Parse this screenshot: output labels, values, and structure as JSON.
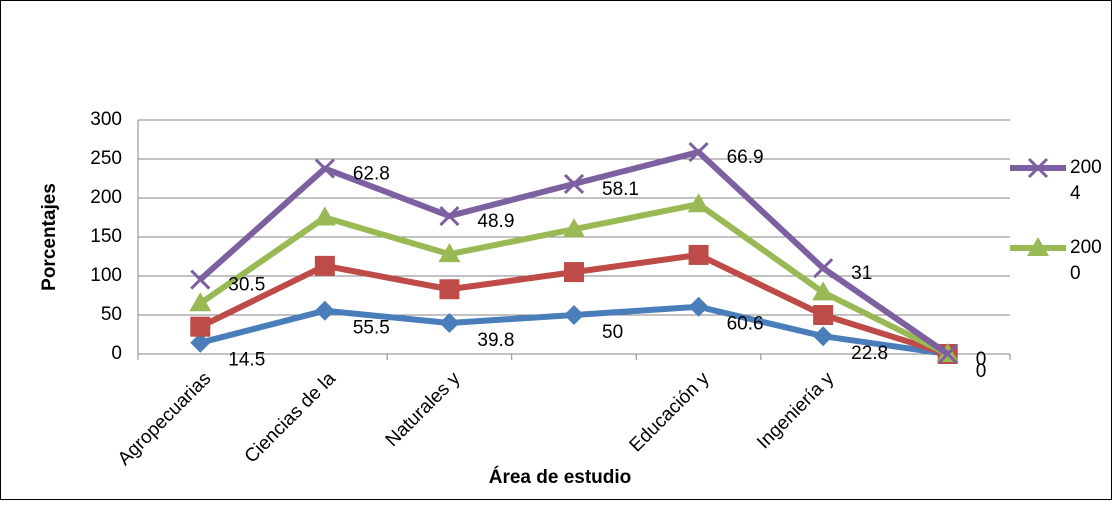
{
  "chart_data": {
    "type": "stacked-line",
    "x_label": "Área de estudio",
    "y_label": "Porcentajes",
    "categories": [
      "Agropecuarias",
      "Ciencias de la",
      "Naturales y",
      null,
      "Educación y",
      "Ingeniería y",
      null
    ],
    "series": [
      {
        "color": "#4a7ebb",
        "marker": "diamond",
        "values": [
          14.5,
          55.5,
          39.8,
          50,
          60.6,
          22.8,
          0
        ],
        "labeled": true
      },
      {
        "color": "#be4b48",
        "marker": "square",
        "values": [
          20.5,
          57.5,
          43.2,
          55,
          66.4,
          27.2,
          0
        ],
        "labeled": false
      },
      {
        "name": "2000",
        "color": "#98b954",
        "marker": "triangle",
        "values": [
          30,
          62,
          45,
          55,
          65,
          29,
          0
        ],
        "labeled": false
      },
      {
        "name": "2004",
        "color": "#7d60a0",
        "marker": "x",
        "values": [
          30.5,
          62.8,
          48.9,
          58.1,
          66.9,
          31,
          0
        ],
        "labeled": true
      }
    ],
    "ylim": [
      0,
      300
    ],
    "yticks": [
      0,
      50,
      100,
      150,
      200,
      250,
      300
    ],
    "grid": true
  }
}
